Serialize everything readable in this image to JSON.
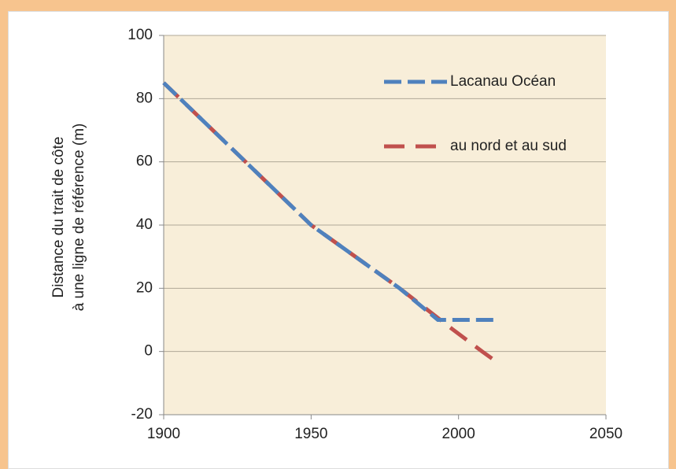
{
  "chart_data": {
    "type": "line",
    "ylabel": [
      "Distance du trait de côte",
      "à une ligne de référence (m)"
    ],
    "xlim": [
      1900,
      2050
    ],
    "xticks": [
      1900,
      1950,
      2000,
      2050
    ],
    "ylim": [
      -20,
      100
    ],
    "yticks": [
      -20,
      0,
      20,
      40,
      60,
      80,
      100
    ],
    "grid": true,
    "legend": "upper right",
    "series": [
      {
        "name": "au nord et au sud",
        "color": "#c0504d",
        "x": [
          1900,
          1950,
          1980,
          1998,
          2008,
          2014
        ],
        "values": [
          85,
          40,
          20,
          7,
          0,
          -4
        ]
      },
      {
        "name": "Lacanau Océan",
        "color": "#4f81bd",
        "x": [
          1900,
          1950,
          1965,
          1980,
          1993,
          2013
        ],
        "values": [
          85,
          40,
          30,
          20,
          10,
          10
        ]
      }
    ]
  }
}
